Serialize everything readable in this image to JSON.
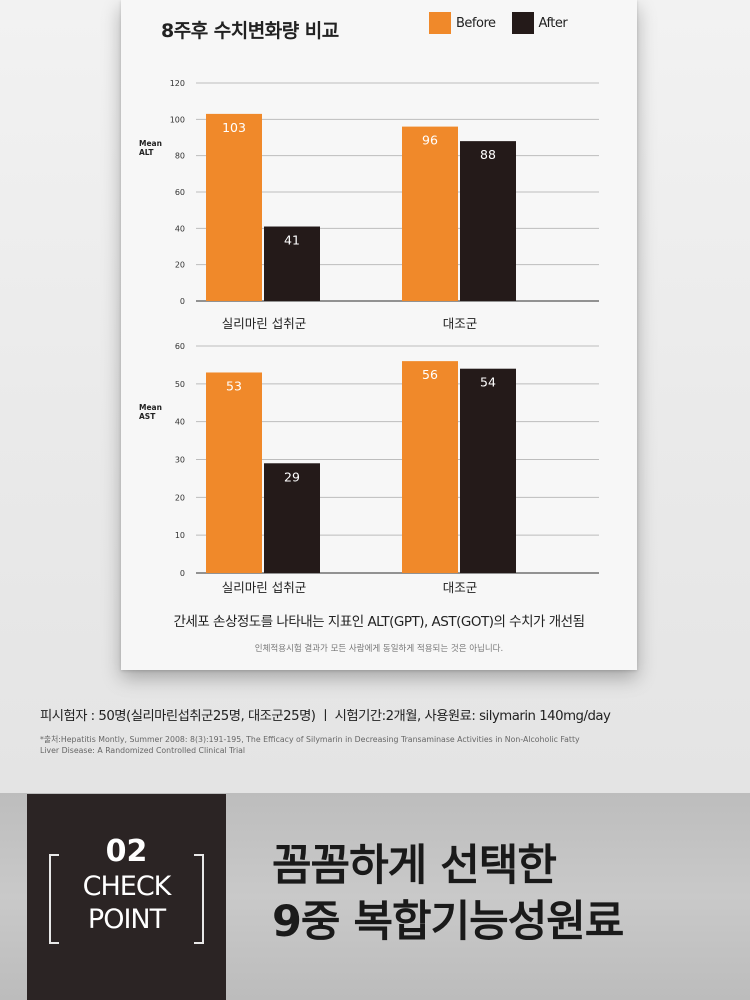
{
  "card": {
    "title": "8주후 수치변화량 비교",
    "caption": "간세포 손상정도를 나타내는 지표인 ALT(GPT), AST(GOT)의 수치가 개선됨",
    "disclaimer": "인체적용시험 결과가 모든 사람에게 동일하게 적용되는 것은 아닙니다."
  },
  "legend": [
    {
      "label": "Before",
      "color": "#f0892a"
    },
    {
      "label": "After",
      "color": "#241a19"
    }
  ],
  "chart_data": [
    {
      "type": "bar",
      "categories": [
        "실리마린 섭취군",
        "대조군"
      ],
      "series": [
        {
          "name": "Before",
          "values": [
            103,
            96
          ],
          "color": "#f0892a"
        },
        {
          "name": "After",
          "values": [
            41,
            88
          ],
          "color": "#241a19"
        }
      ],
      "ylabel": "Mean ALT",
      "ylim": [
        0,
        120
      ],
      "yticks": [
        0,
        20,
        40,
        60,
        80,
        100,
        120
      ],
      "grid": true,
      "legend_position": "top-right"
    },
    {
      "type": "bar",
      "categories": [
        "실리마린 섭취군",
        "대조군"
      ],
      "series": [
        {
          "name": "Before",
          "values": [
            53,
            56
          ],
          "color": "#f0892a"
        },
        {
          "name": "After",
          "values": [
            29,
            54
          ],
          "color": "#241a19"
        }
      ],
      "ylabel": "Mean AST",
      "ylim": [
        0,
        60
      ],
      "yticks": [
        0,
        10,
        20,
        30,
        40,
        50,
        60
      ],
      "grid": true
    }
  ],
  "study": {
    "subjects": "피시험자 : 50명(실리마린섭취군25명, 대조군25명)  ㅣ   시험기간:2개월, 사용원료: silymarin 140mg/day",
    "source": "*출처:Hepatitis Montly, Summer 2008: 8(3):191-195, The Efficacy of Silymarin in Decreasing Transaminase Activities in Non-Alcoholic Fatty Liver Disease: A Randomized Controlled Clinical Trial"
  },
  "checkpoint": {
    "number": "02",
    "line1": "CHECK",
    "line2": "POINT",
    "headline_line1": "꼼꼼하게 선택한",
    "headline_line2": "9중 복합기능성원료"
  }
}
